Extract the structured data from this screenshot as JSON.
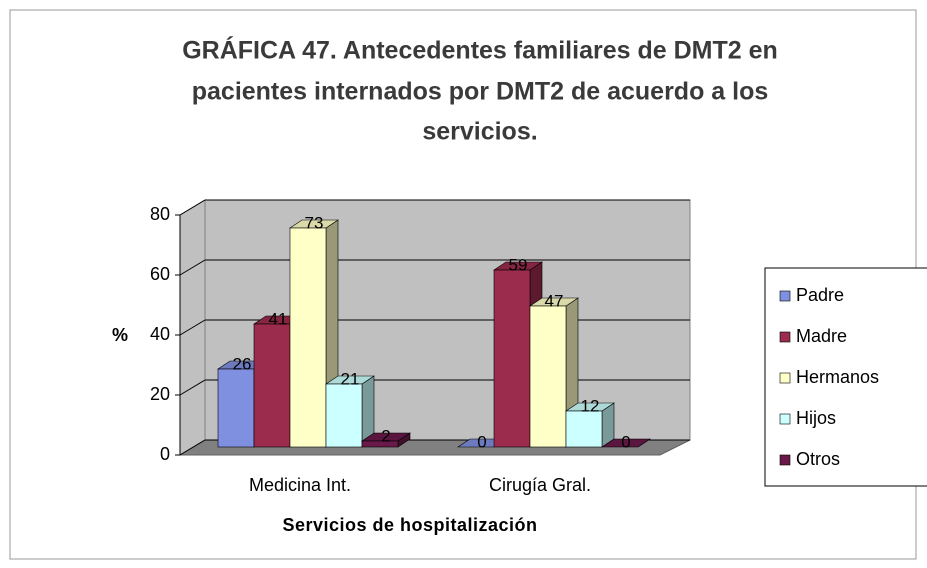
{
  "chart_data": {
    "type": "bar3d",
    "title_lines": [
      "GRÁFICA 47. Antecedentes familiares de DMT2 en",
      "pacientes internados por DMT2 de acuerdo a los",
      "servicios."
    ],
    "x_label": "Servicios de hospitalización",
    "y_label": "%",
    "categories": [
      "Medicina Int.",
      "Cirugía Gral."
    ],
    "series": [
      {
        "name": "Padre",
        "color": "#8090e0",
        "values": [
          26,
          0
        ]
      },
      {
        "name": "Madre",
        "color": "#9b2c4e",
        "values": [
          41,
          59
        ]
      },
      {
        "name": "Hermanos",
        "color": "#ffffc8",
        "values": [
          73,
          47
        ]
      },
      {
        "name": "Hijos",
        "color": "#ccffff",
        "values": [
          21,
          12
        ]
      },
      {
        "name": "Otros",
        "color": "#6a1a4a",
        "values": [
          2,
          0
        ]
      }
    ],
    "ylim": [
      0,
      80
    ],
    "yticks": [
      0,
      20,
      40,
      60,
      80
    ],
    "grid": true,
    "legend": "right"
  }
}
